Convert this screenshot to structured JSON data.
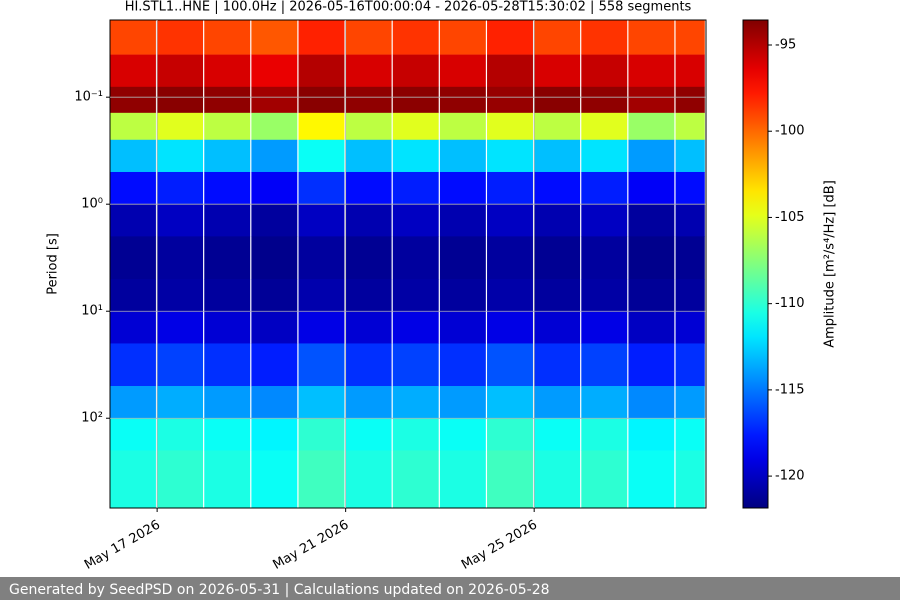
{
  "chart_data": {
    "type": "heatmap",
    "title": "HI.STL1..HNE | 100.0Hz | 2026-05-16T00:00:04 - 2026-05-28T15:30:02 | 558 segments",
    "ylabel": "Period [s]",
    "colorbar_label": "Amplitude [m²/s⁴/Hz] [dB]",
    "footer": "Generated by SeedPSD on 2026-05-31 | Calculations updated on 2026-05-28",
    "colormap": "jet",
    "yscale": "log",
    "y_inverted": true,
    "grid": true,
    "xlim": [
      "2026-05-16T00:00:04",
      "2026-05-28T15:30:02"
    ],
    "xticks": [
      {
        "value": "2026-05-17",
        "label": "May 17 2026"
      },
      {
        "value": "2026-05-21",
        "label": "May 21 2026"
      },
      {
        "value": "2026-05-25",
        "label": "May 25 2026"
      }
    ],
    "ylim": [
      0.019,
      690
    ],
    "yticks": [
      {
        "value": 0.1,
        "label": "10⁻¹"
      },
      {
        "value": 1,
        "label": "10⁰"
      },
      {
        "value": 10,
        "label": "10¹"
      },
      {
        "value": 100,
        "label": "10²"
      }
    ],
    "clim": [
      -121.85,
      -93.55
    ],
    "cticks": [
      -95,
      -100,
      -105,
      -110,
      -115,
      -120
    ],
    "x": [
      "2026-05-16",
      "2026-05-17",
      "2026-05-18",
      "2026-05-19",
      "2026-05-20",
      "2026-05-21",
      "2026-05-22",
      "2026-05-23",
      "2026-05-24",
      "2026-05-25",
      "2026-05-26",
      "2026-05-27",
      "2026-05-28"
    ],
    "y_edges": [
      0.019,
      0.04,
      0.08,
      0.14,
      0.25,
      0.5,
      1,
      2,
      5,
      10,
      20,
      50,
      100,
      200,
      690
    ],
    "values": [
      [
        -99,
        -98.5,
        -99,
        -99.5,
        -98,
        -99,
        -98.5,
        -99,
        -98,
        -99,
        -98.5,
        -99,
        -99
      ],
      [
        -96,
        -95.5,
        -96,
        -96.5,
        -95,
        -96,
        -95.5,
        -96,
        -95,
        -96,
        -95.5,
        -96,
        -96
      ],
      [
        -94,
        -93.8,
        -94,
        -94.5,
        -93.8,
        -94,
        -93.9,
        -94,
        -94.2,
        -93.8,
        -94,
        -94.5,
        -94
      ],
      [
        -106,
        -105,
        -106,
        -107,
        -104,
        -106,
        -105,
        -106,
        -105,
        -106,
        -105,
        -107,
        -106
      ],
      [
        -113,
        -112,
        -113,
        -114,
        -111,
        -113,
        -112,
        -113,
        -112,
        -113,
        -112,
        -114,
        -113
      ],
      [
        -118,
        -117.5,
        -118,
        -118.5,
        -117,
        -118,
        -117.5,
        -118,
        -117.5,
        -118,
        -117.5,
        -118.5,
        -118
      ],
      [
        -120.5,
        -120,
        -120.5,
        -121,
        -120,
        -120.5,
        -120,
        -120.5,
        -120,
        -120.5,
        -120,
        -121,
        -120.5
      ],
      [
        -121.3,
        -121,
        -121.3,
        -121.5,
        -121,
        -121.3,
        -121,
        -121.3,
        -121,
        -121.3,
        -121,
        -121.5,
        -121.3
      ],
      [
        -121,
        -120.8,
        -121,
        -121.2,
        -120.6,
        -121,
        -120.8,
        -121,
        -120.7,
        -121,
        -120.8,
        -121.2,
        -121
      ],
      [
        -119.5,
        -119,
        -119.5,
        -120,
        -119,
        -119.5,
        -119,
        -119.5,
        -119,
        -119.5,
        -119,
        -120,
        -119.5
      ],
      [
        -117,
        -116.5,
        -117,
        -117.5,
        -116,
        -117,
        -116.5,
        -117,
        -116,
        -117,
        -116.5,
        -117.5,
        -117
      ],
      [
        -114,
        -113.5,
        -114,
        -114.5,
        -113,
        -114,
        -113.5,
        -114,
        -113,
        -114,
        -113.5,
        -114.5,
        -114
      ],
      [
        -111,
        -110.5,
        -111,
        -111.5,
        -110,
        -111,
        -110.5,
        -111,
        -110,
        -111,
        -110.5,
        -111.5,
        -111
      ],
      [
        -110.5,
        -110,
        -110.5,
        -111,
        -109.5,
        -110.5,
        -110,
        -110.5,
        -109.5,
        -110.5,
        -110,
        -111,
        -110.5
      ]
    ]
  }
}
